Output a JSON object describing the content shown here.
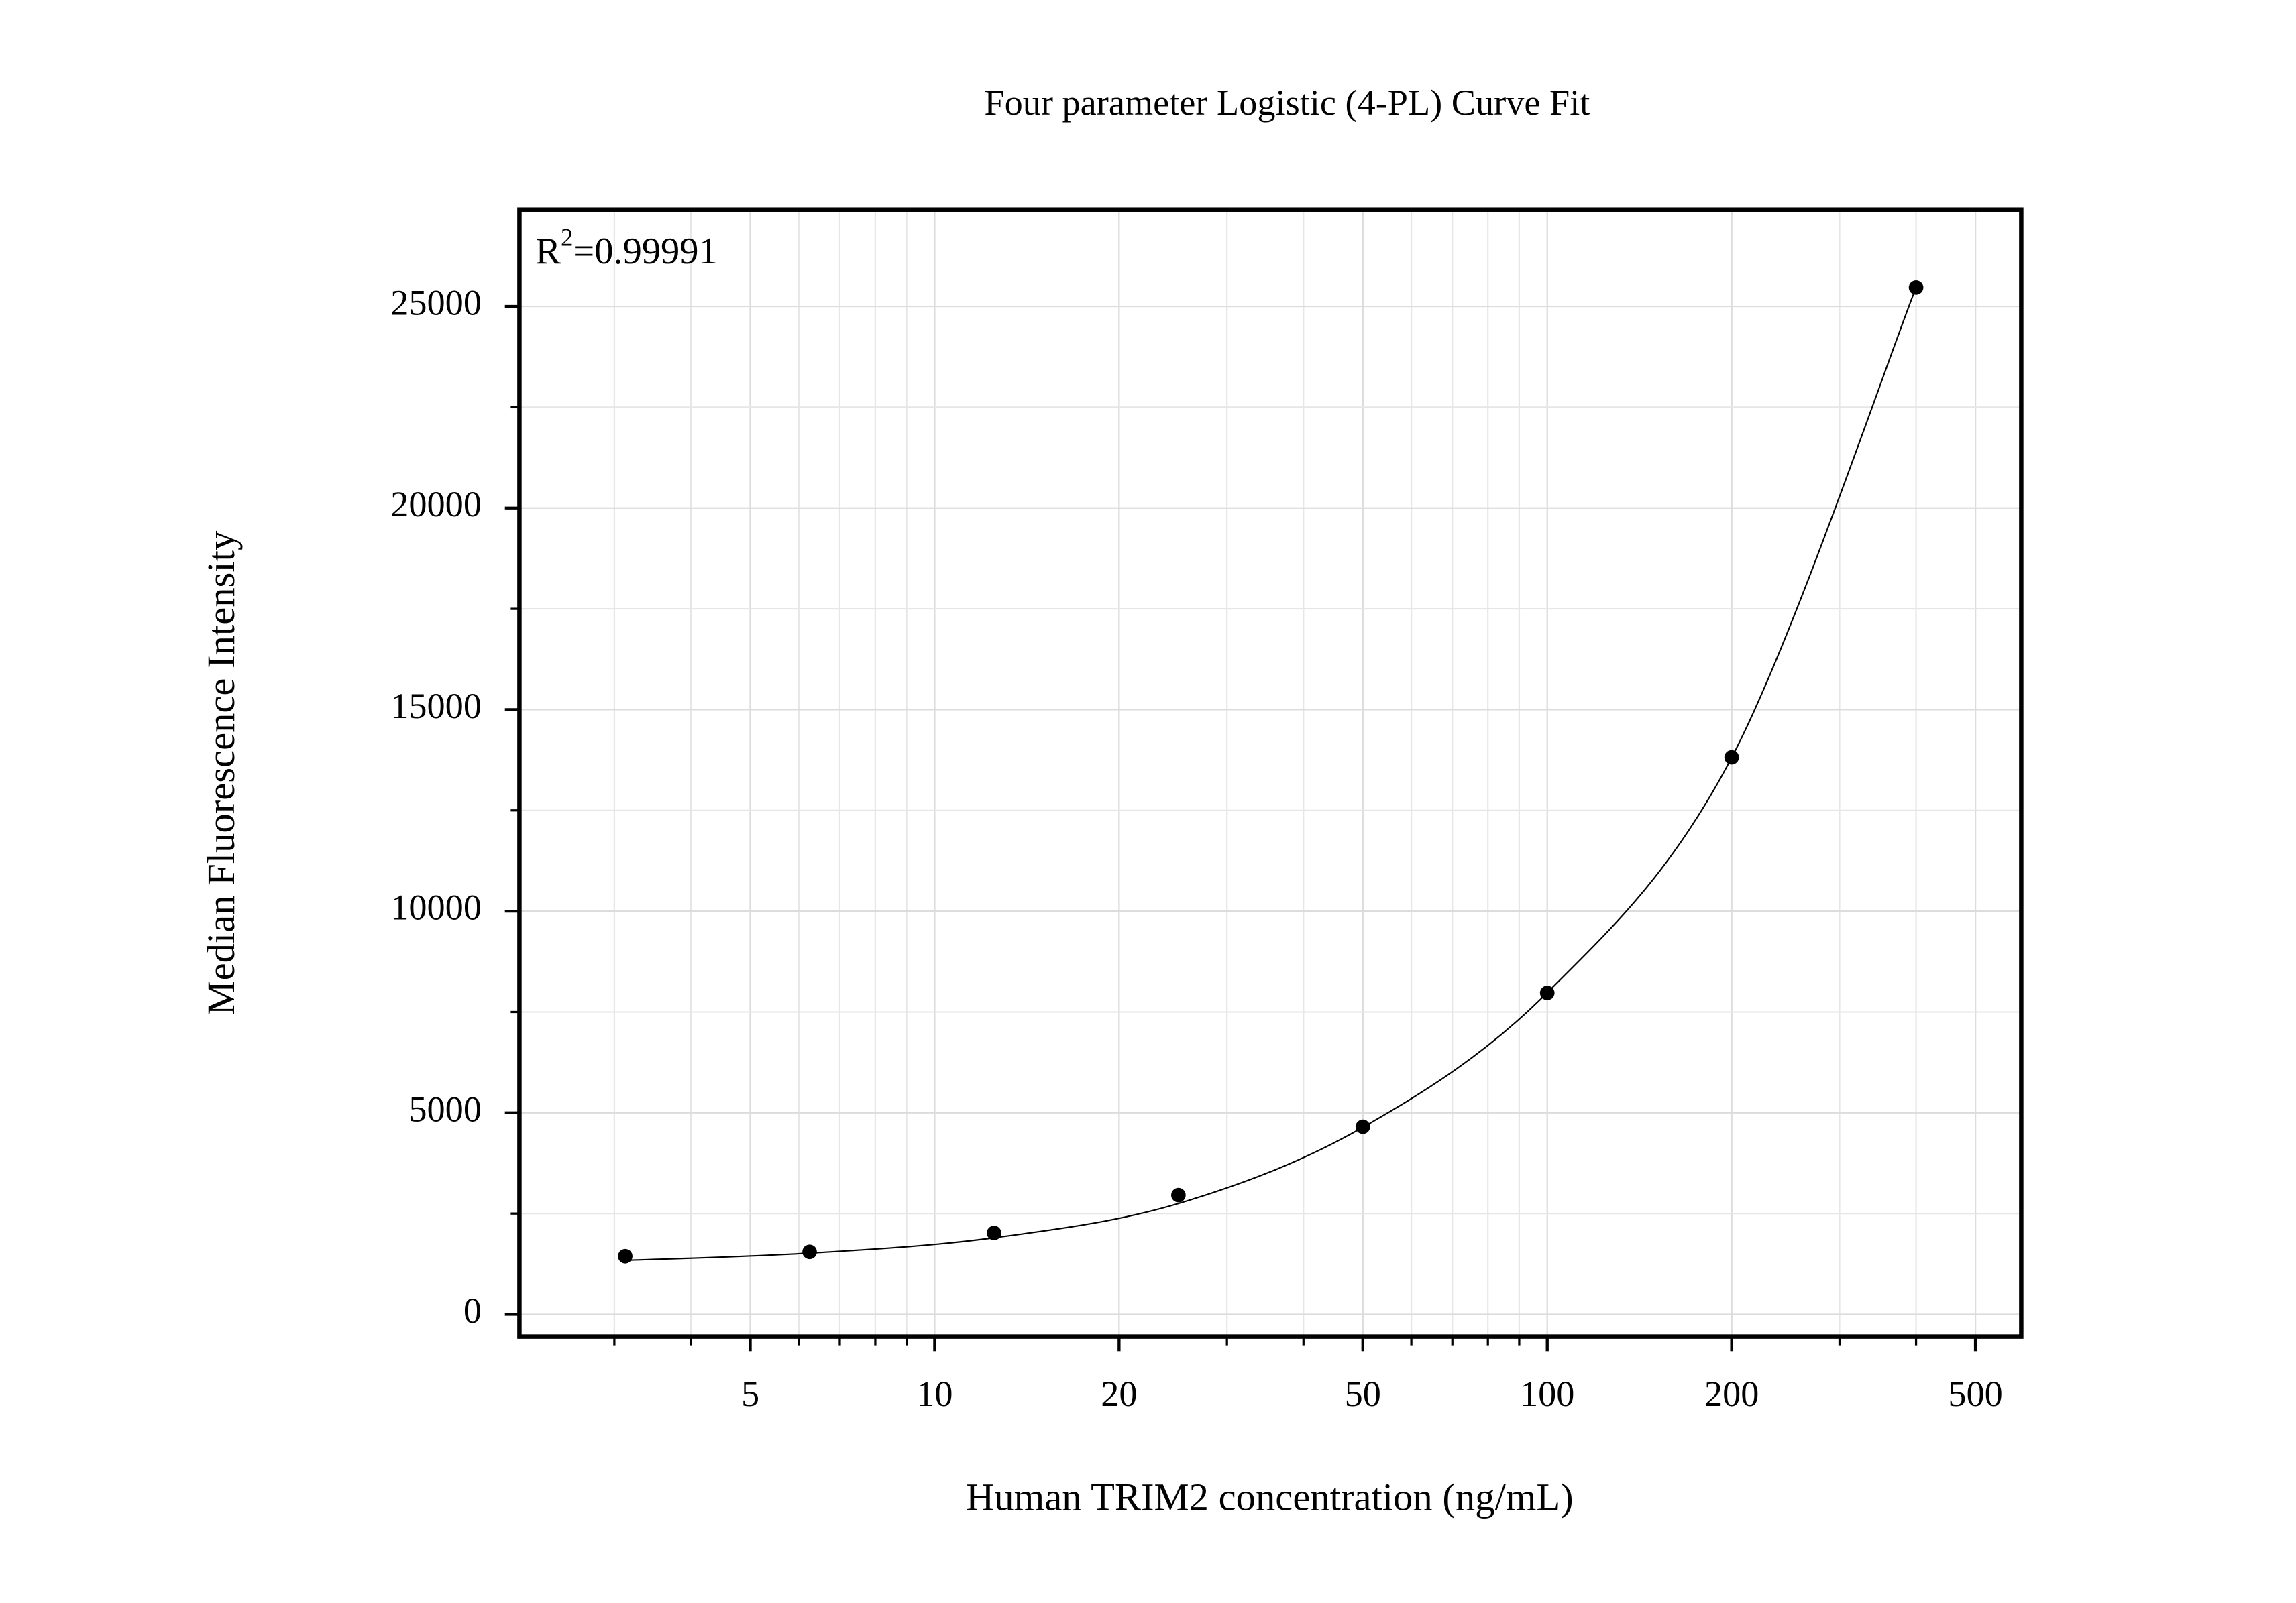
{
  "chart_data": {
    "type": "scatter",
    "title": "Four parameter Logistic (4-PL) Curve Fit",
    "x_label": "Human TRIM2 concentration (ng/mL)",
    "y_label": "Median Fluorescence Intensity",
    "annotation": {
      "base": "R",
      "superscript": "2",
      "text": "=0.99991"
    },
    "log_x": true,
    "grid": true,
    "xlim": [
      2.1,
      594
    ],
    "ylim": [
      -550,
      27400
    ],
    "xticks": [
      5,
      10,
      20,
      50,
      100,
      200,
      500
    ],
    "yticks": [
      0,
      5000,
      10000,
      15000,
      20000,
      25000
    ],
    "series": [
      {
        "kind": "points",
        "color": "#000000",
        "x": [
          3.125,
          6.25,
          12.5,
          25,
          50,
          100,
          200,
          400
        ],
        "values": [
          1443,
          1551,
          2020,
          2958,
          4654,
          7973,
          13817,
          25469
        ]
      },
      {
        "kind": "fit",
        "color": "#000000",
        "x": [
          3.125,
          6.25,
          12.5,
          25,
          50,
          100,
          200,
          400
        ],
        "values": [
          1340,
          1520,
          1900,
          2750,
          4640,
          7980,
          13810,
          25470
        ]
      }
    ]
  }
}
